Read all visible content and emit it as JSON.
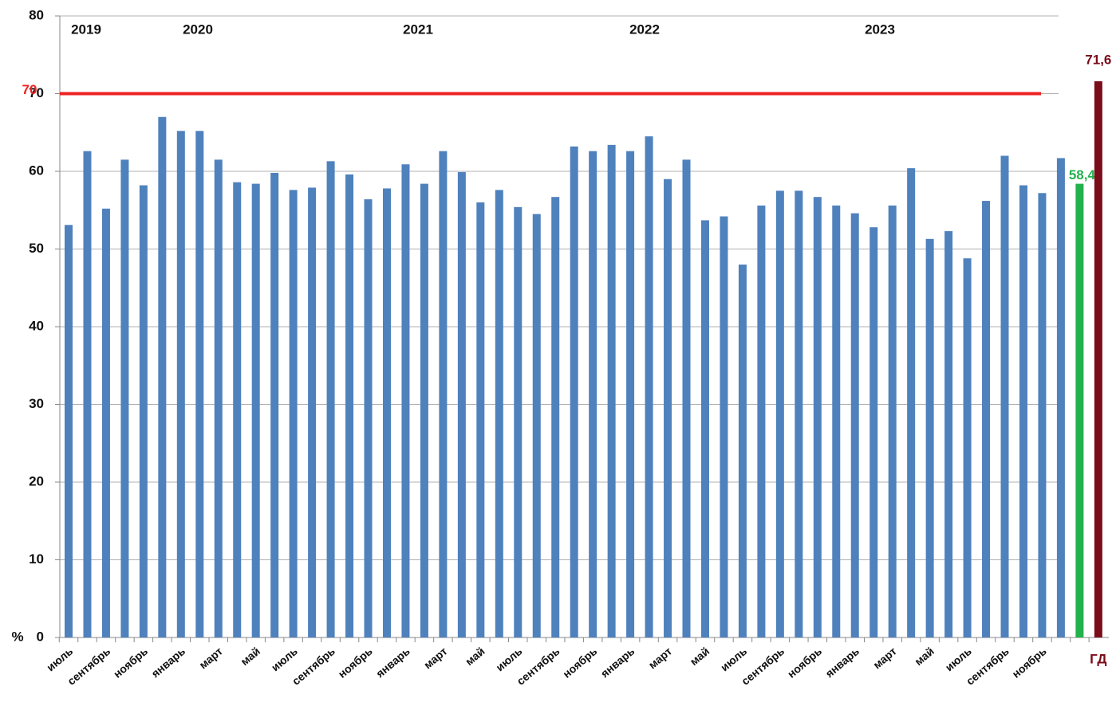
{
  "chart_data": {
    "type": "bar",
    "y_axis_label": "%",
    "annotations": [
      "2019",
      "2020",
      "2021",
      "2022",
      "2023"
    ],
    "reference_line": {
      "value": 70,
      "label": "70",
      "color": "#ee2222"
    },
    "categories": [
      "июль",
      null,
      "сентябрь",
      null,
      "ноябрь",
      null,
      "январь",
      null,
      "март",
      null,
      "май",
      null,
      "июль",
      null,
      "сентябрь",
      null,
      "ноябрь",
      null,
      "январь",
      null,
      "март",
      null,
      "май",
      null,
      "июль",
      null,
      "сентябрь",
      null,
      "ноябрь",
      null,
      "январь",
      null,
      "март",
      null,
      "май",
      null,
      "июль",
      null,
      "сентябрь",
      null,
      "ноябрь",
      null,
      "январь",
      null,
      "март",
      null,
      "май",
      null,
      "июль",
      null,
      "сентябрь",
      null,
      "ноябрь",
      null,
      null,
      "ГД"
    ],
    "values": [
      53.1,
      62.6,
      55.2,
      61.5,
      58.2,
      67,
      65.2,
      65.2,
      61.5,
      58.6,
      58.4,
      59.8,
      57.6,
      57.9,
      61.3,
      59.6,
      56.4,
      57.8,
      60.9,
      58.4,
      62.6,
      59.9,
      56,
      57.6,
      55.4,
      54.5,
      56.7,
      63.2,
      62.6,
      63.4,
      62.6,
      64.5,
      59,
      61.5,
      53.7,
      54.2,
      48,
      55.6,
      57.5,
      57.5,
      56.7,
      55.6,
      54.6,
      52.8,
      55.6,
      60.4,
      51.3,
      52.3,
      48.8,
      56.2,
      62,
      58.2,
      57.2,
      61.7,
      58.4,
      71.6
    ],
    "value_labels": [
      null,
      null,
      null,
      null,
      null,
      null,
      null,
      null,
      null,
      null,
      null,
      null,
      null,
      null,
      null,
      null,
      null,
      null,
      null,
      null,
      null,
      null,
      null,
      null,
      null,
      null,
      null,
      null,
      null,
      null,
      null,
      null,
      null,
      null,
      null,
      null,
      null,
      null,
      null,
      null,
      null,
      null,
      null,
      null,
      null,
      null,
      null,
      null,
      null,
      null,
      null,
      null,
      null,
      null,
      "58,4",
      "71,6"
    ],
    "color": "#4f81bd",
    "highlight_colors": {
      "54": "#22b14c",
      "55": "#7b0c1a"
    },
    "ylim": [
      0,
      80
    ],
    "yticks": [
      0,
      10,
      20,
      30,
      40,
      50,
      60,
      70,
      80
    ],
    "grid": true
  }
}
